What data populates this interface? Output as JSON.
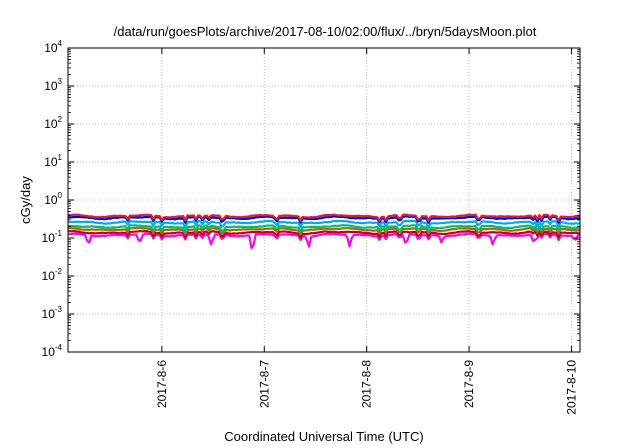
{
  "chart_data": {
    "type": "line",
    "title": "/data/run/goesPlots/archive/2017-08-10/02:00/flux/../bryn/5daysMoon.plot",
    "xlabel": "Coordinated Universal Time (UTC)",
    "ylabel": "cGy/day",
    "yscale": "log",
    "ylim_exponents": [
      -4,
      4
    ],
    "y_tick_base": "10",
    "y_tick_exponents": [
      "-4",
      "-3",
      "-2",
      "-1",
      "0",
      "1",
      "2",
      "3",
      "4"
    ],
    "xlim": [
      "2017-08-05T02:00",
      "2017-08-10T02:00"
    ],
    "x_ticks": [
      {
        "label": "2017-8-6",
        "date": "2017-08-06T00:00"
      },
      {
        "label": "2017-8-7",
        "date": "2017-08-07T00:00"
      },
      {
        "label": "2017-8-8",
        "date": "2017-08-08T00:00"
      },
      {
        "label": "2017-8-9",
        "date": "2017-08-09T00:00"
      },
      {
        "label": "2017-8-10",
        "date": "2017-08-10T00:00"
      }
    ],
    "grid": true,
    "series": [
      {
        "color": "#ff00ff",
        "baseline": 0.12,
        "dips": [
          [
            0.04,
            0.06
          ],
          [
            0.14,
            0.07
          ],
          [
            0.28,
            0.06
          ],
          [
            0.36,
            0.03
          ],
          [
            0.47,
            0.05
          ],
          [
            0.55,
            0.06
          ],
          [
            0.66,
            0.06
          ],
          [
            0.73,
            0.07
          ],
          [
            0.83,
            0.06
          ],
          [
            0.91,
            0.07
          ],
          [
            0.99,
            0.08
          ]
        ]
      },
      {
        "color": "#cc0000",
        "baseline": 0.14
      },
      {
        "color": "#7f7f00",
        "baseline": 0.17
      },
      {
        "color": "#00bb88",
        "baseline": 0.2
      },
      {
        "color": "#00aaee",
        "baseline": 0.26
      },
      {
        "color": "#0000ff",
        "baseline": 0.34
      },
      {
        "color": "#dd2222",
        "baseline": 0.38
      }
    ]
  }
}
